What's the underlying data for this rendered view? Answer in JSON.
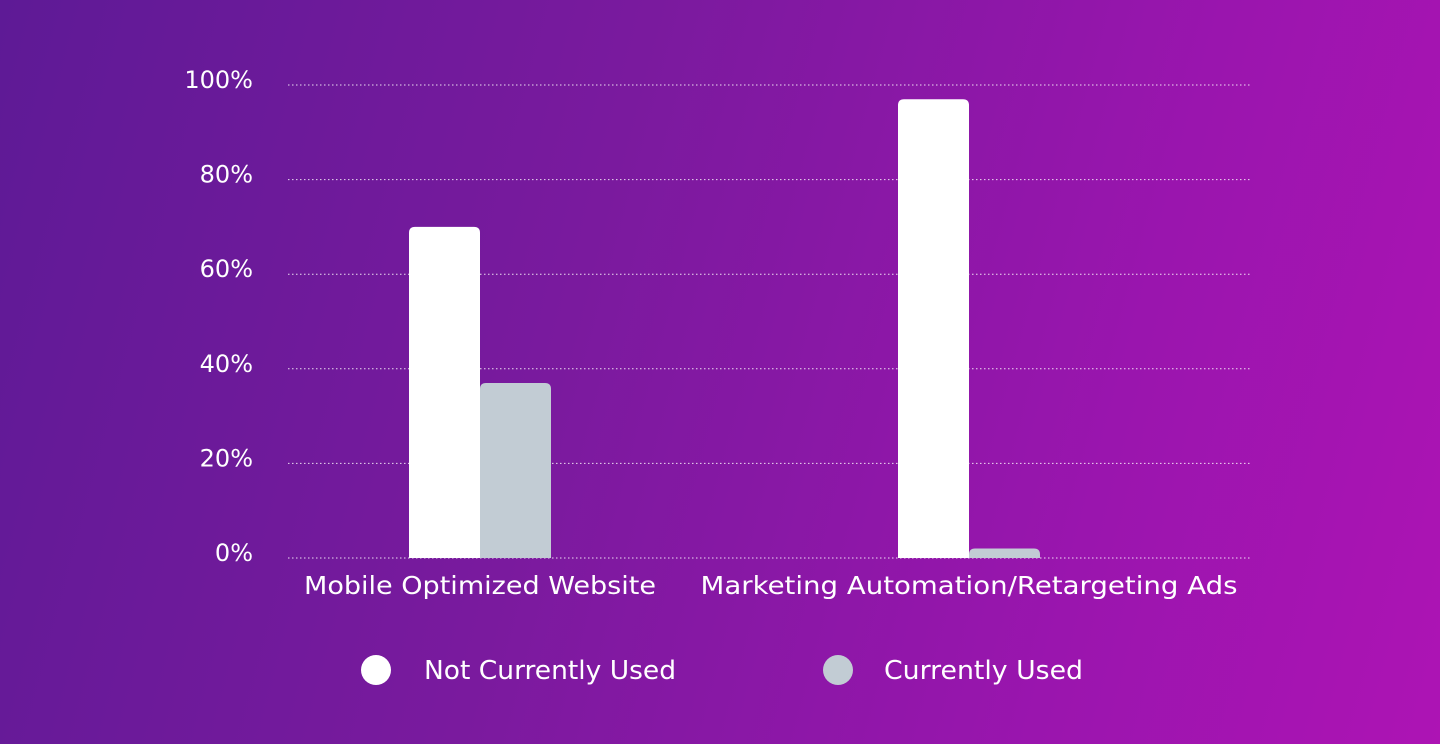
{
  "chart_data": {
    "type": "bar",
    "categories": [
      "Mobile Optimized Website",
      "Marketing Automation/Retargeting Ads"
    ],
    "series": [
      {
        "name": "Not Currently Used",
        "values": [
          70,
          97
        ],
        "color": "#ffffff"
      },
      {
        "name": "Currently Used",
        "values": [
          37,
          2
        ],
        "color": "#c2ccd4"
      }
    ],
    "y_ticks": [
      "0%",
      "20%",
      "40%",
      "60%",
      "80%",
      "100%"
    ],
    "ylim": [
      0,
      100
    ],
    "grid": true,
    "legend": "bottom"
  }
}
